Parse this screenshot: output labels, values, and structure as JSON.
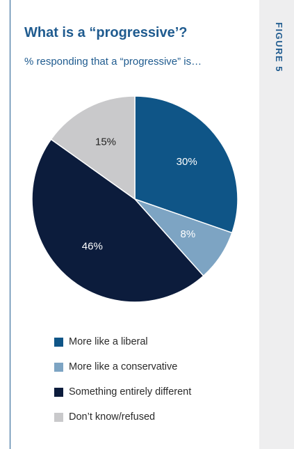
{
  "figure_label": "FIGURE 5",
  "chart_data": {
    "type": "pie",
    "title": "What is a “progressive’?",
    "subtitle": "% responding that a “progressive” is…",
    "slices": [
      {
        "label": "More like a liberal",
        "value": 30,
        "value_label": "30%",
        "color": "#0f5587",
        "text_color": "#ffffff"
      },
      {
        "label": "More like a conservative",
        "value": 8,
        "value_label": "8%",
        "color": "#7da4c3",
        "text_color": "#ffffff"
      },
      {
        "label": "Something entirely different",
        "value": 46,
        "value_label": "46%",
        "color": "#0c1c3c",
        "text_color": "#ffffff"
      },
      {
        "label": "Don’t know/refused",
        "value": 15,
        "value_label": "15%",
        "color": "#c9c9cb",
        "text_color": "#222222"
      }
    ],
    "legend_position": "bottom-left"
  }
}
